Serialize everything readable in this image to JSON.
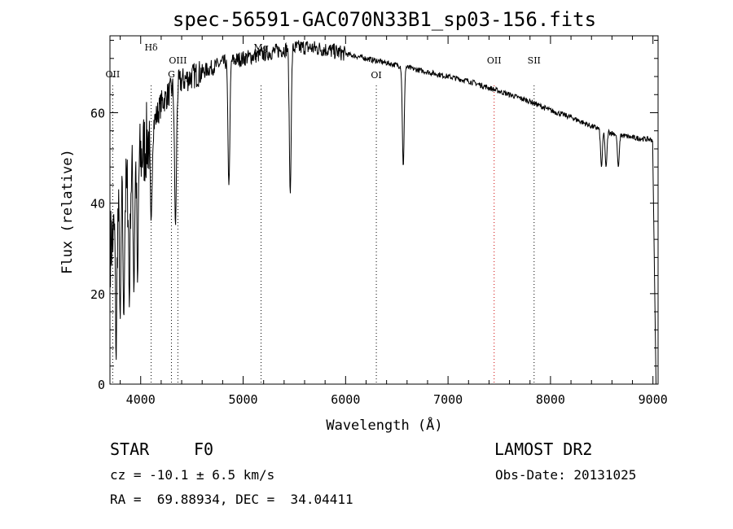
{
  "chart_data": {
    "type": "line",
    "title": "spec-56591-GAC070N33B1_sp03-156.fits",
    "xlabel": "Wavelength (Å)",
    "ylabel": "Flux (relative)",
    "xlim": [
      3700,
      9050
    ],
    "ylim": [
      0,
      77
    ],
    "xticks": [
      4000,
      5000,
      6000,
      7000,
      8000,
      9000
    ],
    "yticks": [
      0,
      20,
      40,
      60
    ],
    "grid": false,
    "line_markers": [
      {
        "label": "OII",
        "wavelength": 3727,
        "color": "#000000"
      },
      {
        "label": "Hδ",
        "wavelength": 4102,
        "color": "#000000"
      },
      {
        "label": "G",
        "wavelength": 4300,
        "color": "#000000"
      },
      {
        "label": "OIII",
        "wavelength": 4363,
        "color": "#000000"
      },
      {
        "label": "Mg",
        "wavelength": 5175,
        "color": "#000000"
      },
      {
        "label": "OI",
        "wavelength": 6300,
        "color": "#000000"
      },
      {
        "label": "OII",
        "wavelength": 7450,
        "color": "#cc0000"
      },
      {
        "label": "SII",
        "wavelength": 7840,
        "color": "#000000"
      }
    ],
    "series": [
      {
        "name": "flux",
        "continuum": [
          [
            3700,
            30
          ],
          [
            3800,
            38
          ],
          [
            3900,
            45
          ],
          [
            4000,
            50
          ],
          [
            4100,
            56
          ],
          [
            4200,
            62
          ],
          [
            4300,
            65
          ],
          [
            4400,
            67
          ],
          [
            4500,
            68
          ],
          [
            4600,
            69
          ],
          [
            4700,
            70
          ],
          [
            4800,
            71
          ],
          [
            5000,
            72
          ],
          [
            5200,
            73
          ],
          [
            5400,
            74
          ],
          [
            5600,
            74.5
          ],
          [
            5800,
            74
          ],
          [
            6000,
            73
          ],
          [
            6200,
            72
          ],
          [
            6400,
            71
          ],
          [
            6600,
            70
          ],
          [
            6800,
            69
          ],
          [
            7000,
            68
          ],
          [
            7200,
            67
          ],
          [
            7400,
            65.5
          ],
          [
            7600,
            64
          ],
          [
            7800,
            62.5
          ],
          [
            8000,
            60.5
          ],
          [
            8200,
            59
          ],
          [
            8400,
            57
          ],
          [
            8600,
            55.5
          ],
          [
            8800,
            54.5
          ],
          [
            9000,
            54
          ]
        ],
        "absorption_lines": [
          [
            3760,
            5
          ],
          [
            3800,
            14
          ],
          [
            3835,
            14
          ],
          [
            3889,
            17
          ],
          [
            3934,
            20
          ],
          [
            3970,
            22
          ],
          [
            4102,
            36
          ],
          [
            4340,
            35
          ],
          [
            4861,
            44
          ],
          [
            5460,
            42
          ],
          [
            6563,
            48
          ],
          [
            8498,
            48
          ],
          [
            8542,
            48
          ],
          [
            8662,
            48
          ]
        ],
        "drop_at_end": [
          9030,
          0
        ]
      }
    ],
    "colors": {
      "axis": "#000000",
      "line": "#000000",
      "red_marker": "#cc0000"
    }
  },
  "info": {
    "object_class": "STAR",
    "subclass": "F0",
    "survey": "LAMOST DR2",
    "redshift_line": "cz = -10.1 ± 6.5 km/s",
    "obs_date": "Obs-Date: 20131025",
    "coords": "RA =  69.88934, DEC =  34.04411"
  }
}
